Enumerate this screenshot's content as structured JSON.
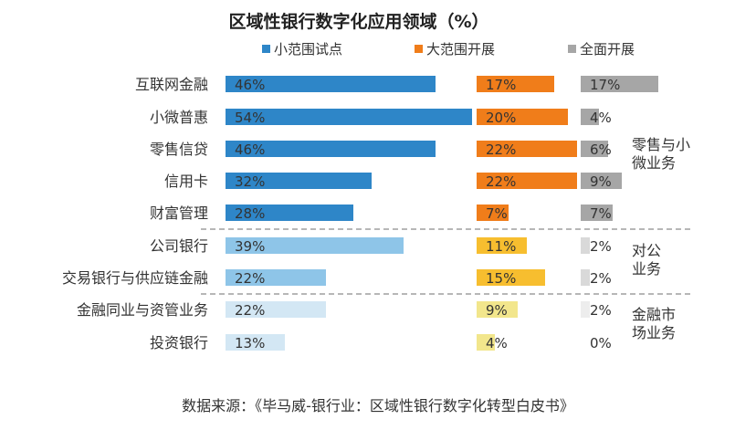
{
  "chart_data": {
    "type": "bar",
    "orientation": "horizontal",
    "title": "区域性银行数字化应用领域（%）",
    "categories": [
      "互联网金融",
      "小微普惠",
      "零售信贷",
      "信用卡",
      "财富管理",
      "公司银行",
      "交易银行与供应链金融",
      "金融同业与资管业务",
      "投资银行"
    ],
    "series": [
      {
        "name": "小范围试点",
        "color": "#2E86C8",
        "values": [
          46,
          54,
          46,
          32,
          28,
          39,
          22,
          22,
          13
        ]
      },
      {
        "name": "大范围开展",
        "color": "#F07D1A",
        "values": [
          17,
          20,
          22,
          22,
          7,
          11,
          15,
          9,
          4
        ]
      },
      {
        "name": "全面开展",
        "color": "#A6A6A6",
        "values": [
          17,
          4,
          6,
          9,
          7,
          2,
          2,
          2,
          0
        ]
      }
    ],
    "group_colors": [
      [
        "#2E86C8",
        "#F07D1A",
        "#A6A6A6"
      ],
      [
        "#8EC5E8",
        "#F7BE2F",
        "#D9D9D9"
      ],
      [
        "#D3E7F4",
        "#F2E68C",
        "#EDEDED"
      ]
    ],
    "groups": [
      {
        "label_lines": [
          "零售与小",
          "微业务"
        ],
        "rows": [
          0,
          1,
          2,
          3,
          4
        ]
      },
      {
        "label_lines": [
          "对公",
          "业务"
        ],
        "rows": [
          5,
          6
        ]
      },
      {
        "label_lines": [
          "金融市",
          "场业务"
        ],
        "rows": [
          7,
          8
        ]
      }
    ],
    "value_suffix": "%",
    "source": "数据来源：《毕马威-银行业：区域性银行数字化转型白皮书》"
  }
}
